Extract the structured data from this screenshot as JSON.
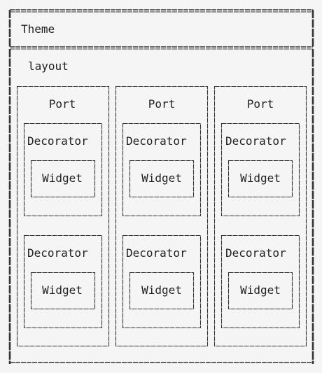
{
  "theme": {
    "label": "Theme"
  },
  "layout": {
    "label": "layout",
    "ports": [
      {
        "label": "Port",
        "decorators": [
          {
            "label": "Decorator",
            "widget": "Widget"
          },
          {
            "label": "Decorator",
            "widget": "Widget"
          }
        ]
      },
      {
        "label": "Port",
        "decorators": [
          {
            "label": "Decorator",
            "widget": "Widget"
          },
          {
            "label": "Decorator",
            "widget": "Widget"
          }
        ]
      },
      {
        "label": "Port",
        "decorators": [
          {
            "label": "Decorator",
            "widget": "Widget"
          },
          {
            "label": "Decorator",
            "widget": "Widget"
          }
        ]
      }
    ]
  }
}
